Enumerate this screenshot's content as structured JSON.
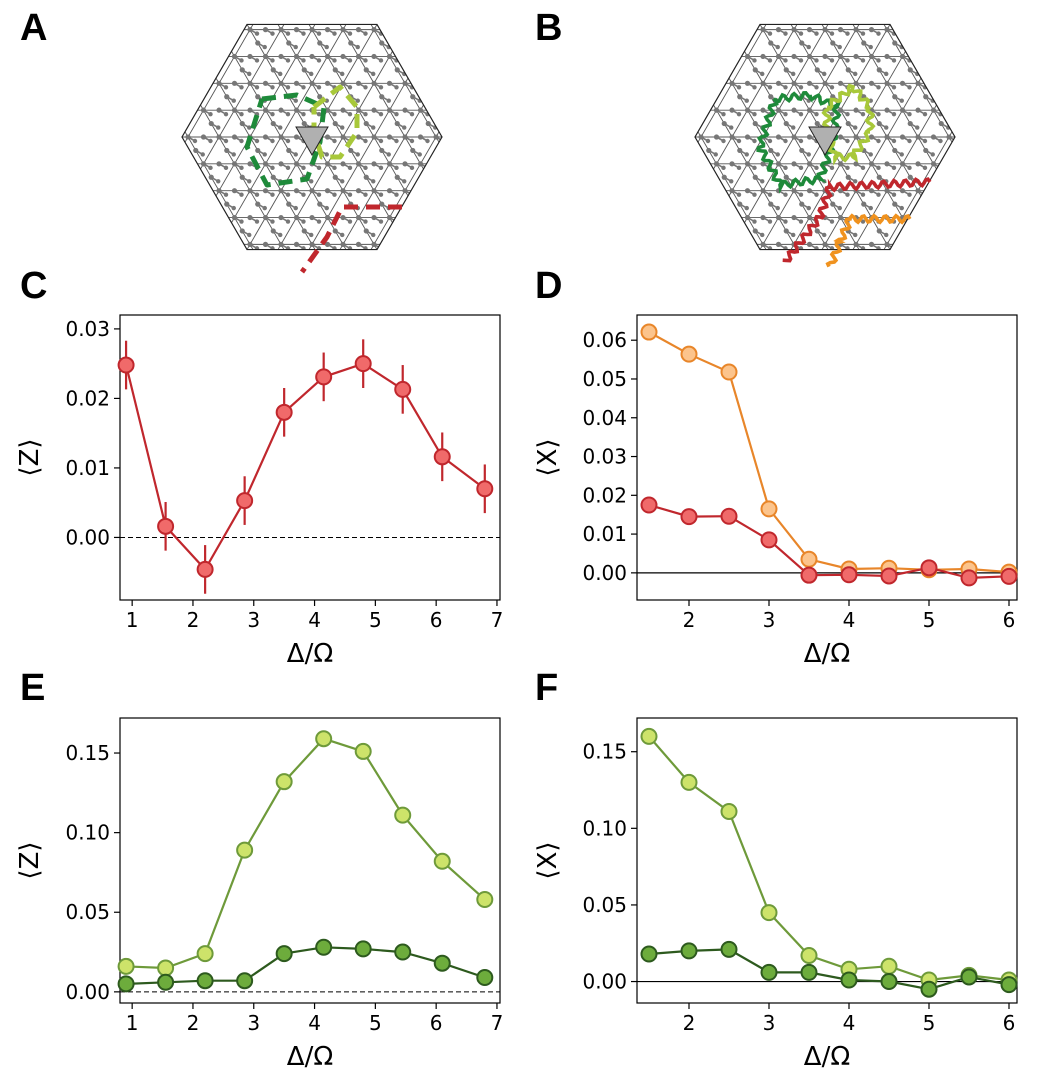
{
  "figure": {
    "panel_labels": [
      "A",
      "B",
      "C",
      "D",
      "E",
      "F"
    ]
  },
  "colors": {
    "red_dark": "#c0272d",
    "red_light": "#f06a6a",
    "orange_dark": "#e8862a",
    "orange_light": "#fcc48c",
    "green_light_line": "#6e9a3a",
    "green_light_fill": "#cde36a",
    "green_dark_line": "#2d5a1e",
    "green_dark_fill": "#6dac3c",
    "loop_green": "#1e8a3a",
    "loop_lime": "#a8c83a",
    "lattice": "#777777",
    "marker_gray": "#b0b0b0"
  },
  "diagrams": {
    "A": {
      "style": "dashed",
      "loops": [
        "dark-green-loop",
        "lime-loop",
        "red-string"
      ]
    },
    "B": {
      "style": "wavy",
      "loops": [
        "dark-green-loop",
        "lime-loop",
        "red-string",
        "orange-string"
      ]
    }
  },
  "chart_data": [
    {
      "panel": "C",
      "type": "line",
      "xlabel": "Δ/Ω",
      "ylabel": "⟨Z⟩",
      "xlim": [
        0.8,
        7.05
      ],
      "ylim": [
        -0.009,
        0.032
      ],
      "xticks": [
        1,
        2,
        3,
        4,
        5,
        6,
        7
      ],
      "yticks": [
        0.0,
        0.01,
        0.02,
        0.03
      ],
      "ytick_labels": [
        "0.00",
        "0.01",
        "0.02",
        "0.03"
      ],
      "baseline": "dashed",
      "series": [
        {
          "name": "red",
          "line": "#c0272d",
          "fill": "#f06a6a",
          "x": [
            0.9,
            1.55,
            2.2,
            2.85,
            3.5,
            4.15,
            4.8,
            5.45,
            6.1,
            6.8
          ],
          "y": [
            0.0248,
            0.0016,
            -0.0046,
            0.0053,
            0.018,
            0.0231,
            0.025,
            0.0213,
            0.0116,
            0.007
          ],
          "err": [
            0.0035,
            0.0035,
            0.0035,
            0.0035,
            0.0035,
            0.0035,
            0.0035,
            0.0035,
            0.0035,
            0.0035
          ]
        }
      ]
    },
    {
      "panel": "D",
      "type": "line",
      "xlabel": "Δ/Ω",
      "ylabel": "⟨X⟩",
      "xlim": [
        1.35,
        6.1
      ],
      "ylim": [
        -0.007,
        0.0665
      ],
      "xticks": [
        2,
        3,
        4,
        5,
        6
      ],
      "yticks": [
        0.0,
        0.01,
        0.02,
        0.03,
        0.04,
        0.05,
        0.06
      ],
      "ytick_labels": [
        "0.00",
        "0.01",
        "0.02",
        "0.03",
        "0.04",
        "0.05",
        "0.06"
      ],
      "baseline": "solid",
      "series": [
        {
          "name": "orange",
          "line": "#e8862a",
          "fill": "#fcc48c",
          "x": [
            1.5,
            2.0,
            2.5,
            3.0,
            3.5,
            4.0,
            4.5,
            5.0,
            5.5,
            6.0
          ],
          "y": [
            0.0621,
            0.0564,
            0.0518,
            0.0165,
            0.0035,
            0.001,
            0.0012,
            0.0008,
            0.001,
            0.0002
          ]
        },
        {
          "name": "red",
          "line": "#c0272d",
          "fill": "#f06a6a",
          "x": [
            1.5,
            2.0,
            2.5,
            3.0,
            3.5,
            4.0,
            4.5,
            5.0,
            5.5,
            6.0
          ],
          "y": [
            0.0175,
            0.0145,
            0.0146,
            0.0085,
            -0.0006,
            -0.0005,
            -0.0008,
            0.0013,
            -0.0013,
            -0.0009
          ]
        }
      ]
    },
    {
      "panel": "E",
      "type": "line",
      "xlabel": "Δ/Ω",
      "ylabel": "⟨Z⟩",
      "xlim": [
        0.8,
        7.05
      ],
      "ylim": [
        -0.007,
        0.172
      ],
      "xticks": [
        1,
        2,
        3,
        4,
        5,
        6,
        7
      ],
      "yticks": [
        0.0,
        0.05,
        0.1,
        0.15
      ],
      "ytick_labels": [
        "0.00",
        "0.05",
        "0.10",
        "0.15"
      ],
      "baseline": "dashed",
      "series": [
        {
          "name": "light-green",
          "line": "#6e9a3a",
          "fill": "#cde36a",
          "x": [
            0.9,
            1.55,
            2.2,
            2.85,
            3.5,
            4.15,
            4.8,
            5.45,
            6.1,
            6.8
          ],
          "y": [
            0.016,
            0.015,
            0.024,
            0.089,
            0.132,
            0.159,
            0.151,
            0.111,
            0.082,
            0.058
          ]
        },
        {
          "name": "dark-green",
          "line": "#2d5a1e",
          "fill": "#6dac3c",
          "x": [
            0.9,
            1.55,
            2.2,
            2.85,
            3.5,
            4.15,
            4.8,
            5.45,
            6.1,
            6.8
          ],
          "y": [
            0.005,
            0.006,
            0.007,
            0.007,
            0.024,
            0.028,
            0.027,
            0.025,
            0.018,
            0.009
          ]
        }
      ]
    },
    {
      "panel": "F",
      "type": "line",
      "xlabel": "Δ/Ω",
      "ylabel": "⟨X⟩",
      "xlim": [
        1.35,
        6.1
      ],
      "ylim": [
        -0.014,
        0.172
      ],
      "xticks": [
        2,
        3,
        4,
        5,
        6
      ],
      "yticks": [
        0.0,
        0.05,
        0.1,
        0.15
      ],
      "ytick_labels": [
        "0.00",
        "0.05",
        "0.10",
        "0.15"
      ],
      "baseline": "solid",
      "series": [
        {
          "name": "light-green",
          "line": "#6e9a3a",
          "fill": "#cde36a",
          "x": [
            1.5,
            2.0,
            2.5,
            3.0,
            3.5,
            4.0,
            4.5,
            5.0,
            5.5,
            6.0
          ],
          "y": [
            0.16,
            0.13,
            0.111,
            0.045,
            0.017,
            0.008,
            0.01,
            0.001,
            0.004,
            0.001
          ]
        },
        {
          "name": "dark-green",
          "line": "#2d5a1e",
          "fill": "#6dac3c",
          "x": [
            1.5,
            2.0,
            2.5,
            3.0,
            3.5,
            4.0,
            4.5,
            5.0,
            5.5,
            6.0
          ],
          "y": [
            0.018,
            0.02,
            0.021,
            0.006,
            0.006,
            0.001,
            0.0,
            -0.005,
            0.003,
            -0.002
          ]
        }
      ]
    }
  ]
}
